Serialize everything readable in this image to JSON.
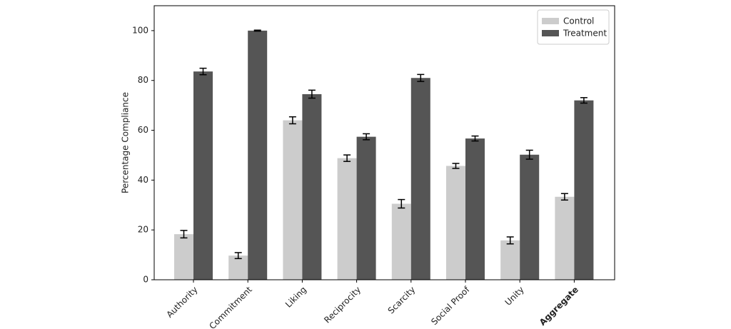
{
  "chart_data": {
    "type": "bar",
    "y_label": "Percentage Compliance",
    "categories": [
      "Authority",
      "Commitment",
      "Liking",
      "Reciprocity",
      "Scarcity",
      "Social Proof",
      "Unity",
      "Aggregate"
    ],
    "series": [
      {
        "name": "Control",
        "color": "#cccccc",
        "values": [
          18.3,
          9.7,
          64,
          48.8,
          30.5,
          45.7,
          15.8,
          33.3
        ],
        "errors": [
          1.5,
          1.2,
          1.4,
          1.3,
          1.7,
          1.0,
          1.4,
          1.3
        ]
      },
      {
        "name": "Treatment",
        "color": "#555555",
        "values": [
          83.6,
          100,
          74.5,
          57.4,
          81,
          56.7,
          50.2,
          72
        ],
        "errors": [
          1.3,
          0.2,
          1.6,
          1.2,
          1.4,
          1.0,
          1.8,
          1.1
        ]
      }
    ],
    "ylim": [
      0,
      110
    ],
    "yticks": [
      0,
      20,
      40,
      60,
      80,
      100
    ],
    "legend": "upper right"
  }
}
